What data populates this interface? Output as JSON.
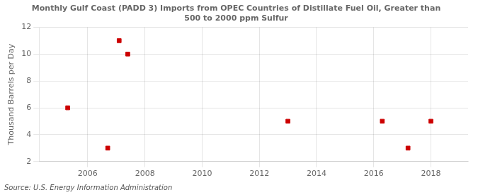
{
  "chart_data": {
    "type": "scatter",
    "title": "Monthly Gulf Coast (PADD 3) Imports from OPEC Countries of Distillate Fuel Oil, Greater than\n500 to 2000 ppm Sulfur",
    "ylabel": "Thousand Barrels per Day",
    "source": "Source: U.S. Energy Information Administration",
    "x": [
      2005.3,
      2006.7,
      2007.1,
      2007.4,
      2013.0,
      2016.3,
      2017.2,
      2018.0
    ],
    "values": [
      6.0,
      3.0,
      11.0,
      10.0,
      5.0,
      5.0,
      3.0,
      5.0
    ],
    "color": "#cc0000",
    "marker": "square",
    "xlim": [
      2004.3,
      2019.3
    ],
    "ylim": [
      2,
      12
    ],
    "xticks": [
      2006,
      2008,
      2010,
      2012,
      2014,
      2016,
      2018
    ],
    "yticks": [
      2,
      4,
      6,
      8,
      10,
      12
    ],
    "grid": true
  }
}
